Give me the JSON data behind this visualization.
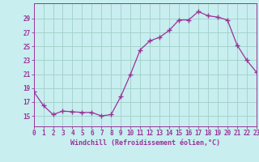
{
  "x": [
    0,
    1,
    2,
    3,
    4,
    5,
    6,
    7,
    8,
    9,
    10,
    11,
    12,
    13,
    14,
    15,
    16,
    17,
    18,
    19,
    20,
    21,
    22,
    23
  ],
  "y": [
    18.5,
    16.5,
    15.2,
    15.7,
    15.6,
    15.5,
    15.5,
    15.0,
    15.2,
    17.8,
    21.0,
    24.5,
    25.8,
    26.3,
    27.3,
    28.8,
    28.8,
    30.0,
    29.4,
    29.2,
    28.8,
    25.2,
    23.0,
    21.3
  ],
  "line_color": "#993399",
  "marker": "+",
  "marker_size": 4,
  "marker_linewidth": 1.0,
  "line_width": 0.9,
  "bg_color": "#c8eef0",
  "grid_color": "#a0cfc8",
  "xlabel": "Windchill (Refroidissement éolien,°C)",
  "ylabel_ticks": [
    15,
    17,
    19,
    21,
    23,
    25,
    27,
    29
  ],
  "ylim": [
    13.5,
    31.2
  ],
  "xlim": [
    0,
    23
  ],
  "tick_color": "#993399",
  "label_color": "#993399",
  "spine_color": "#993399",
  "tick_fontsize": 5.5,
  "label_fontsize": 6.0
}
